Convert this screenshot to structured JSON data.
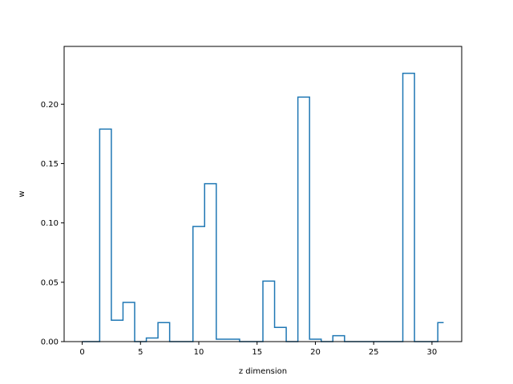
{
  "chart_data": {
    "type": "step",
    "title": "",
    "xlabel": "z dimension",
    "ylabel": "w",
    "xlim": [
      -1.55,
      32.55
    ],
    "ylim": [
      0,
      0.2487
    ],
    "xticks": [
      0,
      5,
      10,
      15,
      20,
      25,
      30
    ],
    "xtick_labels": [
      "0",
      "5",
      "10",
      "15",
      "20",
      "25",
      "30"
    ],
    "yticks": [
      0.0,
      0.05,
      0.1,
      0.15,
      0.2
    ],
    "ytick_labels": [
      "0.00",
      "0.05",
      "0.10",
      "0.15",
      "0.20"
    ],
    "grid": false,
    "step_where": "mid",
    "series": [
      {
        "color": "#1f77b4",
        "x": [
          0,
          1,
          2,
          3,
          4,
          5,
          6,
          7,
          8,
          9,
          10,
          11,
          12,
          13,
          14,
          15,
          16,
          17,
          18,
          19,
          20,
          21,
          22,
          23,
          24,
          25,
          26,
          27,
          28,
          29,
          30,
          31
        ],
        "values": [
          0.0,
          0.0,
          0.179,
          0.018,
          0.033,
          0.0,
          0.003,
          0.016,
          0.0,
          0.0,
          0.097,
          0.133,
          0.002,
          0.002,
          0.0,
          0.0,
          0.051,
          0.012,
          0.0,
          0.206,
          0.002,
          0.0,
          0.005,
          0.0,
          0.0,
          0.0,
          0.0,
          0.0,
          0.226,
          0.0,
          0.0,
          0.016
        ]
      }
    ]
  }
}
